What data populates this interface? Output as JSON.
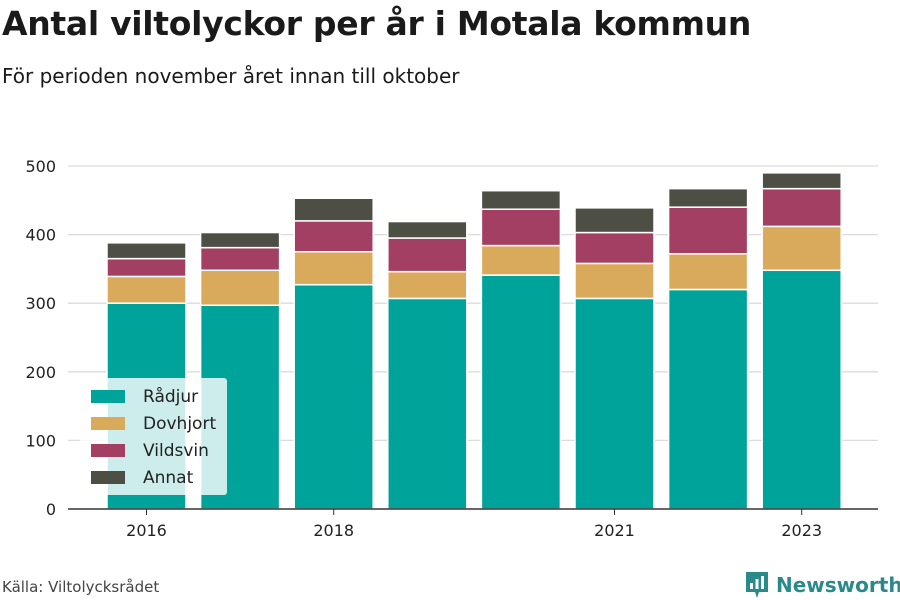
{
  "title": "Antal viltolyckor per år i Motala kommun",
  "subtitle": "För perioden november året innan till oktober",
  "source": "Källa: Viltolycksrådet",
  "brand": {
    "name": "Newsworthy",
    "icon": "newsworthy-logo-icon",
    "color": "#2a8a8a"
  },
  "chart_data": {
    "type": "bar",
    "stacked": true,
    "categories": [
      "2016",
      "2017",
      "2018",
      "2019",
      "2020",
      "2021",
      "2022",
      "2023"
    ],
    "x_tick_labels": [
      "2016",
      "",
      "2018",
      "",
      "",
      "2021",
      "",
      "2023"
    ],
    "series": [
      {
        "name": "Rådjur",
        "color": "#00a39a",
        "values": [
          300,
          297,
          327,
          307,
          341,
          307,
          320,
          348
        ]
      },
      {
        "name": "Dovhjort",
        "color": "#d9aa5c",
        "values": [
          39,
          51,
          48,
          39,
          43,
          51,
          52,
          64
        ]
      },
      {
        "name": "Vildsvin",
        "color": "#a43f64",
        "values": [
          26,
          33,
          45,
          49,
          53,
          45,
          68,
          55
        ]
      },
      {
        "name": "Annat",
        "color": "#4d4f44",
        "values": [
          23,
          22,
          33,
          24,
          27,
          36,
          27,
          23
        ]
      }
    ],
    "ylim": [
      0,
      500
    ],
    "yticks": [
      0,
      100,
      200,
      300,
      400,
      500
    ],
    "grid": true,
    "legend_position": "bottom-left"
  }
}
